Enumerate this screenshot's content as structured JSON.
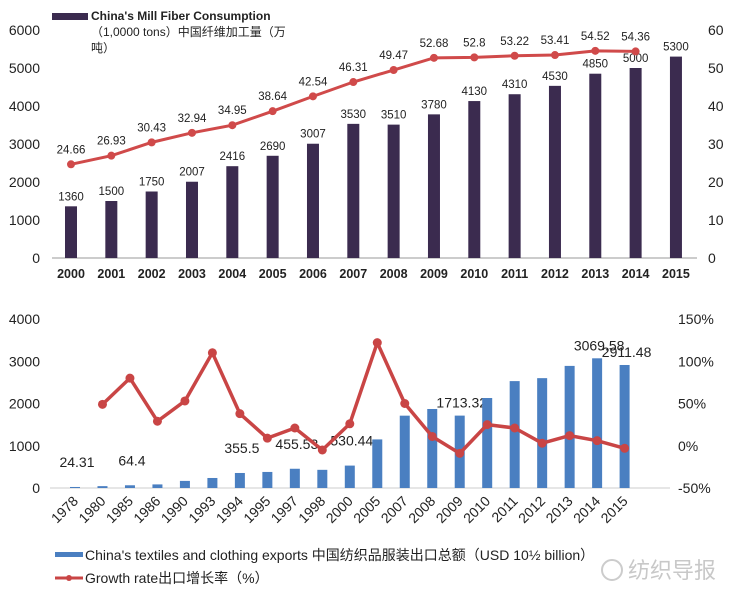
{
  "chart_data": [
    {
      "type": "bar",
      "categories": [
        "2000",
        "2001",
        "2002",
        "2003",
        "2004",
        "2005",
        "2006",
        "2007",
        "2008",
        "2009",
        "2010",
        "2011",
        "2012",
        "2013",
        "2014",
        "2015"
      ],
      "series": [
        {
          "name": "China's Mill Fiber Consumption （1,0000 tons）中国纤维加工量（万吨）",
          "kind": "bar",
          "axis": "left",
          "color": "#3b2b4f",
          "values": [
            1360,
            1500,
            1750,
            2007,
            2416,
            2690,
            3007,
            3530,
            3510,
            3780,
            4130,
            4310,
            4530,
            4850,
            5000,
            5300
          ],
          "labels": [
            "1360",
            "1500",
            "1750",
            "2007",
            "2416",
            "2690",
            "3007",
            "3530",
            "3510",
            "3780",
            "4130",
            "4310",
            "4530",
            "4850",
            "5000",
            "5300"
          ]
        },
        {
          "kind": "line",
          "axis": "right",
          "color": "#d04a4a",
          "values": [
            24.66,
            26.93,
            30.43,
            32.94,
            34.95,
            38.64,
            42.54,
            46.31,
            49.47,
            52.68,
            52.8,
            53.22,
            53.41,
            54.52,
            54.36,
            null
          ],
          "labels": [
            "24.66",
            "26.93",
            "30.43",
            "32.94",
            "34.95",
            "38.64",
            "42.54",
            "46.31",
            "49.47",
            "52.68",
            "52.8",
            "53.22",
            "53.41",
            "54.52",
            "54.36",
            ""
          ]
        }
      ],
      "left_axis": {
        "ylim": [
          0,
          6000
        ],
        "ticks": [
          "0",
          "1000",
          "2000",
          "3000",
          "4000",
          "5000",
          "6000"
        ]
      },
      "right_axis": {
        "ylim": [
          0,
          60
        ],
        "ticks": [
          "0",
          "10",
          "20",
          "30",
          "40",
          "50",
          "60"
        ]
      },
      "legend_placement": "top-left",
      "grid": false
    },
    {
      "type": "bar",
      "categories": [
        "1978",
        "1980",
        "1985",
        "1986",
        "1990",
        "1993",
        "1994",
        "1995",
        "1997",
        "1998",
        "2000",
        "2005",
        "2007",
        "2008",
        "2009",
        "2010",
        "2011",
        "2012",
        "2013",
        "2014",
        "2015"
      ],
      "series": [
        {
          "name": "China's textiles and clothing exports 中国纺织品服装出口总额（USD 10½ billion）",
          "kind": "bar",
          "axis": "left",
          "color": "#4a7fc1",
          "values": [
            24.31,
            44,
            64.4,
            85,
            168,
            237,
            355.5,
            380,
            455.53,
            430,
            530.44,
            1150,
            1712,
            1870,
            1713.32,
            2130,
            2530,
            2600,
            2890,
            3069.58,
            2911.48
          ],
          "labels": [
            "24.31",
            "",
            "64.4",
            "",
            "",
            "",
            "355.5",
            "",
            "455.53",
            "",
            "530.44",
            "",
            "",
            "",
            "1713.32",
            "",
            "",
            "",
            "",
            "3069.58",
            "2911.48"
          ]
        },
        {
          "name": "Growth rate出口增长率（%）",
          "kind": "line",
          "axis": "right",
          "color": "#c94545",
          "values": [
            null,
            49,
            80,
            29,
            53,
            110,
            38,
            9,
            21,
            -5,
            26,
            122,
            50,
            11,
            -9,
            25,
            21,
            3,
            12,
            6,
            -3
          ]
        }
      ],
      "left_axis": {
        "ylim": [
          0,
          4000
        ],
        "ticks": [
          "0",
          "1000",
          "2000",
          "3000",
          "4000"
        ]
      },
      "right_axis": {
        "ylim": [
          -50,
          150
        ],
        "ticks": [
          "-50%",
          "0%",
          "50%",
          "100%",
          "150%"
        ]
      },
      "legend_placement": "bottom",
      "grid": false
    }
  ],
  "watermark": "纺织导报"
}
